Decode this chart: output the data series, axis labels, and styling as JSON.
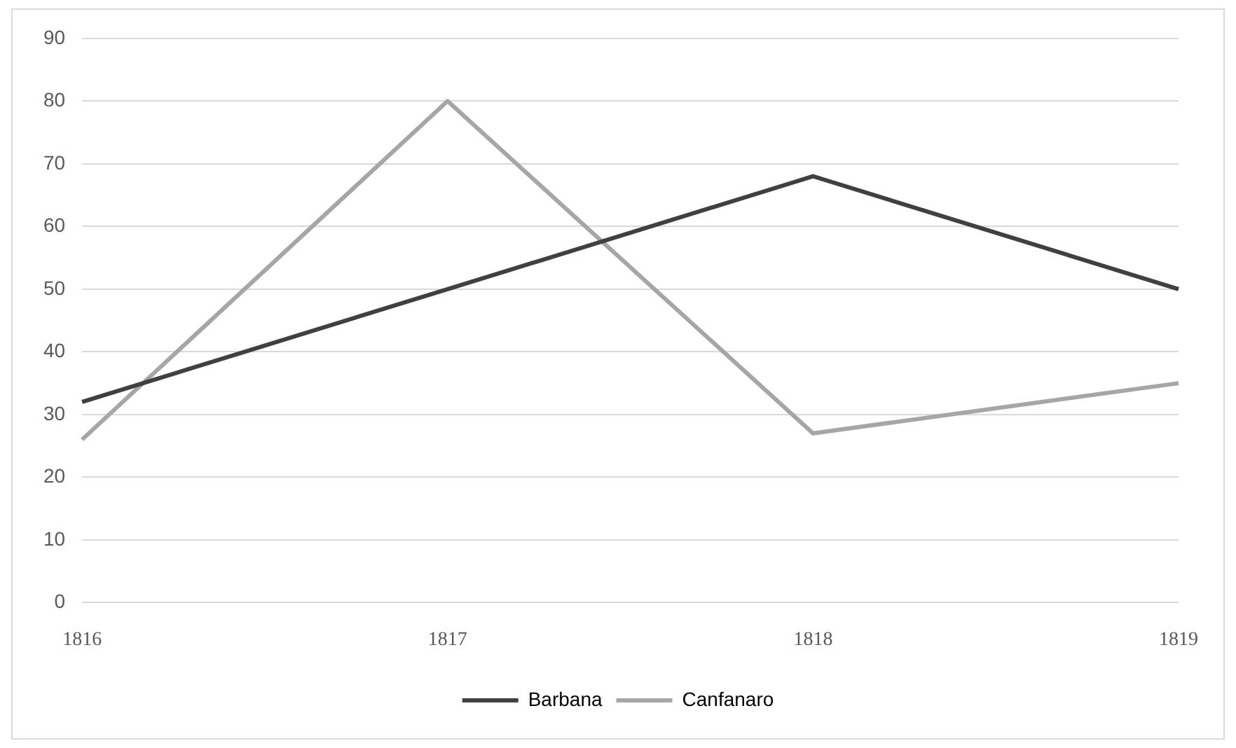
{
  "chart_data": {
    "type": "line",
    "categories": [
      "1816",
      "1817",
      "1818",
      "1819"
    ],
    "series": [
      {
        "name": "Barbana",
        "color": "#404040",
        "values": [
          32,
          50,
          68,
          50
        ]
      },
      {
        "name": "Canfanaro",
        "color": "#a6a6a6",
        "values": [
          26,
          80,
          27,
          35
        ]
      }
    ],
    "ylim": [
      0,
      90
    ],
    "yticks": [
      0,
      10,
      20,
      30,
      40,
      50,
      60,
      70,
      80,
      90
    ],
    "grid": "y",
    "legend": "bottom",
    "marker": "none"
  }
}
